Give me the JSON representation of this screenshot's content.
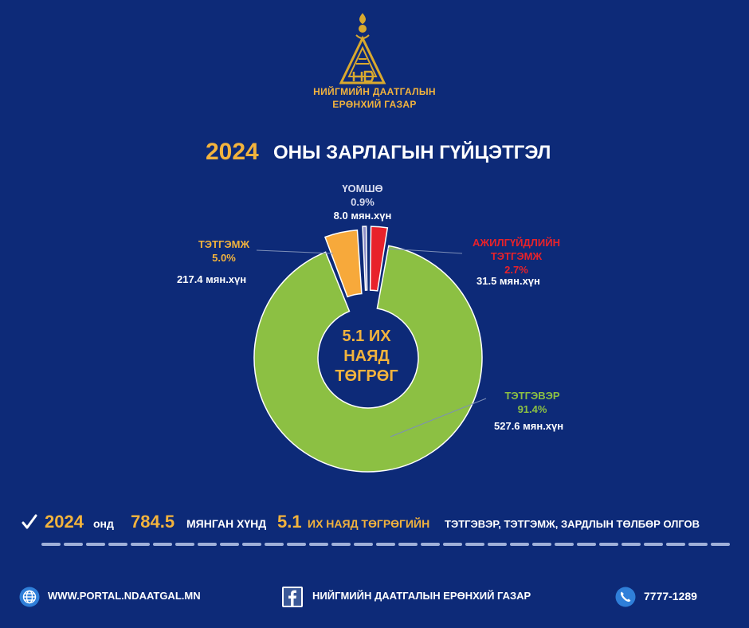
{
  "org": {
    "line1": "НИЙГМИЙН ДААТГАЛЫН",
    "line2": "ЕРӨНХИЙ ГАЗАР"
  },
  "title": {
    "year": "2024",
    "text": "ОНЫ ЗАРЛАГЫН ГҮЙЦЭТГЭЛ"
  },
  "chart_data": {
    "type": "pie",
    "style": "donut",
    "center_label": [
      "5.1 ИХ",
      "НАЯД",
      "ТӨГРӨГ"
    ],
    "slices": [
      {
        "name": "ТЭТГЭВЭР",
        "percent": "91.4%",
        "value": 91.4,
        "amount": "527.6 мян.хүн",
        "color": "#8cc043",
        "exploded": false
      },
      {
        "name": "ТЭТГЭМЖ",
        "percent": "5.0%",
        "value": 5.0,
        "amount": "217.4 мян.хүн",
        "color": "#f7a93b",
        "exploded": true
      },
      {
        "name": "ҮОМШӨ",
        "percent": "0.9%",
        "value": 0.9,
        "amount": "8.0 мян.хүн",
        "color": "#8e8fc7",
        "exploded": true
      },
      {
        "name": "АЖИЛГҮЙДЛИЙН ТЭТГЭМЖ",
        "name_lines": [
          "АЖИЛГҮЙДЛИЙН",
          "ТЭТГЭМЖ"
        ],
        "percent": "2.7%",
        "value": 2.7,
        "amount": "31.5 мян.хүн",
        "color": "#e8222a",
        "exploded": true
      }
    ],
    "label_colors": {
      "ТЭТГЭВЭР": "#8cc043",
      "ТЭТГЭМЖ": "#f2b33d",
      "ҮОМШӨ": "#d9dcef",
      "АЖИЛГҮЙДЛИЙН ТЭТГЭМЖ": "#e8222a"
    }
  },
  "summary": {
    "year": "2024",
    "ond": "онд",
    "count": "784.5",
    "people": "МЯНГАН ХҮНД",
    "amount": "5.1",
    "unit": "ИХ НАЯД ТӨГРӨГИЙН",
    "rest": "ТЭТГЭВЭР, ТЭТГЭМЖ, ЗАРДЛЫН ТӨЛБӨР ОЛГОВ"
  },
  "footer": {
    "website": "WWW.PORTAL.NDAATGAL.MN",
    "facebook": "НИЙГМИЙН ДААТГАЛЫН ЕРӨНХИЙ ГАЗАР",
    "phone": "7777-1289"
  },
  "icons": {
    "logo": "soyombo-triangle-logo",
    "check": "check-icon",
    "globe": "globe-icon",
    "facebook": "facebook-icon",
    "phone": "phone-icon"
  }
}
